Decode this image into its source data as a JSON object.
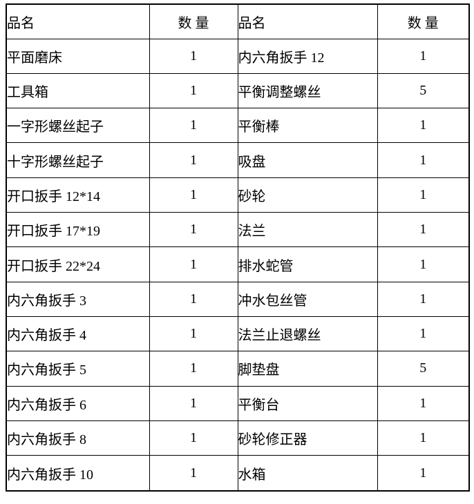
{
  "table": {
    "headers": {
      "name_left": "品名",
      "qty_left": "数  量",
      "name_right": "品名",
      "qty_right": "数  量"
    },
    "rows": [
      {
        "left_name": "平面磨床",
        "left_qty": "1",
        "right_name": "内六角扳手 12",
        "right_qty": "1"
      },
      {
        "left_name": "工具箱",
        "left_qty": "1",
        "right_name": "平衡调整螺丝",
        "right_qty": "5"
      },
      {
        "left_name": "一字形螺丝起子",
        "left_qty": "1",
        "right_name": "平衡棒",
        "right_qty": "1"
      },
      {
        "left_name": "十字形螺丝起子",
        "left_qty": "1",
        "right_name": "吸盘",
        "right_qty": "1"
      },
      {
        "left_name": "开口扳手 12*14",
        "left_qty": "1",
        "right_name": "砂轮",
        "right_qty": "1"
      },
      {
        "left_name": "开口扳手 17*19",
        "left_qty": "1",
        "right_name": "法兰",
        "right_qty": "1"
      },
      {
        "left_name": "开口扳手 22*24",
        "left_qty": "1",
        "right_name": "排水蛇管",
        "right_qty": "1"
      },
      {
        "left_name": "内六角扳手 3",
        "left_qty": "1",
        "right_name": "冲水包丝管",
        "right_qty": "1"
      },
      {
        "left_name": "内六角扳手 4",
        "left_qty": "1",
        "right_name": "法兰止退螺丝",
        "right_qty": "1"
      },
      {
        "left_name": "内六角扳手 5",
        "left_qty": "1",
        "right_name": "脚垫盘",
        "right_qty": "5"
      },
      {
        "left_name": "内六角扳手 6",
        "left_qty": "1",
        "right_name": "平衡台",
        "right_qty": "1"
      },
      {
        "left_name": "内六角扳手 8",
        "left_qty": "1",
        "right_name": "砂轮修正器",
        "right_qty": "1"
      },
      {
        "left_name": "内六角扳手 10",
        "left_qty": "1",
        "right_name": "水箱",
        "right_qty": "1"
      }
    ],
    "colors": {
      "border": "#000000",
      "text": "#000000",
      "background": "#ffffff"
    }
  }
}
